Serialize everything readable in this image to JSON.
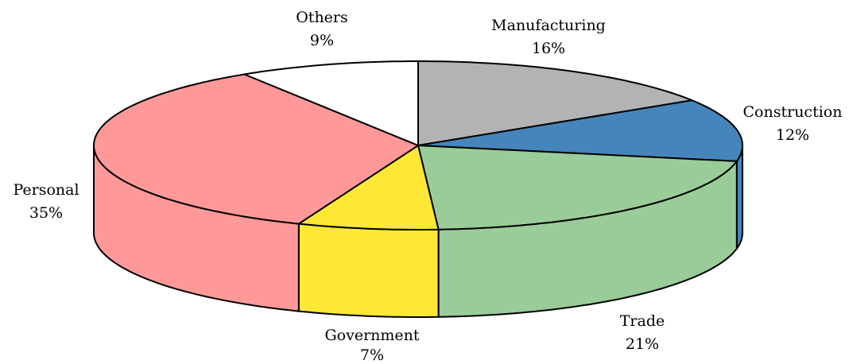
{
  "chart_data": {
    "type": "pie3d",
    "categories": [
      "Manufacturing",
      "Construction",
      "Trade",
      "Government",
      "Personal",
      "Others"
    ],
    "values": [
      16,
      12,
      21,
      7,
      35,
      9
    ],
    "value_labels": [
      "16%",
      "12%",
      "21%",
      "7%",
      "35%",
      "9%"
    ],
    "colors": [
      "#b3b3b3",
      "#4585bb",
      "#99cc99",
      "#ffe835",
      "#ff9999",
      "#ffffff"
    ]
  }
}
